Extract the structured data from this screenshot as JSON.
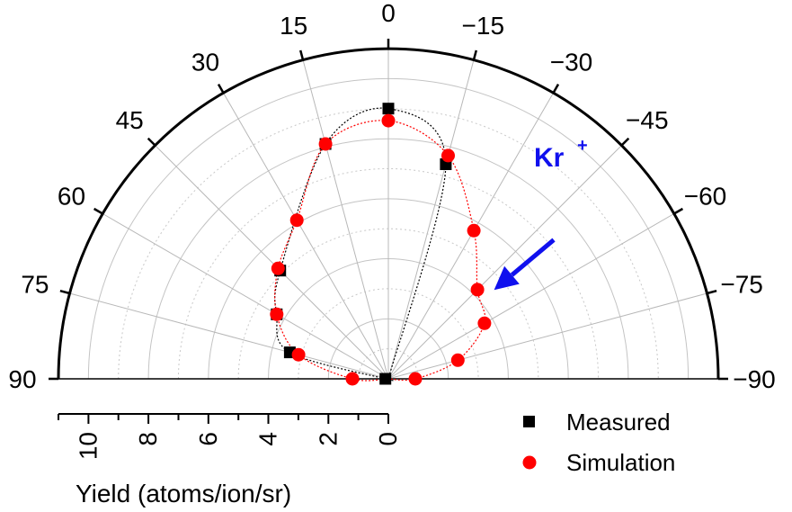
{
  "chart_data": {
    "type": "scatter",
    "coordinate_system": "polar-half",
    "angle_ticks": [
      "90",
      "75",
      "60",
      "45",
      "30",
      "15",
      "0",
      "−15",
      "−30",
      "−45",
      "−60",
      "−75",
      "−90"
    ],
    "angle_tick_values": [
      90,
      75,
      60,
      45,
      30,
      15,
      0,
      -15,
      -30,
      -45,
      -60,
      -75,
      -90
    ],
    "radial_axis": {
      "label": "Yield (atoms/ion/sr)",
      "ticks": [
        "10",
        "8",
        "6",
        "4",
        "2",
        "0"
      ],
      "tick_values": [
        10,
        8,
        6,
        4,
        2,
        0
      ],
      "range": [
        0,
        11
      ]
    },
    "annotation": {
      "text": "Kr",
      "superscript": "+",
      "arrow_from_angle": -50,
      "color": "#1010ee"
    },
    "series": [
      {
        "name": "Measured",
        "marker": "square",
        "color": "#000000",
        "points": [
          {
            "angle": 0,
            "r": 9.0
          },
          {
            "angle": 15,
            "r": 8.1
          },
          {
            "angle": -15,
            "r": 7.4
          },
          {
            "angle": 45,
            "r": 5.1
          },
          {
            "angle": 60,
            "r": 4.3
          },
          {
            "angle": 75,
            "r": 3.4
          },
          {
            "angle": 90,
            "r": 0.1
          }
        ]
      },
      {
        "name": "Simulation",
        "marker": "circle",
        "color": "#ff0000",
        "points": [
          {
            "angle": 0,
            "r": 8.6
          },
          {
            "angle": 15,
            "r": 8.1
          },
          {
            "angle": -15,
            "r": 7.7
          },
          {
            "angle": 30,
            "r": 6.1
          },
          {
            "angle": -30,
            "r": 5.7
          },
          {
            "angle": 45,
            "r": 5.2
          },
          {
            "angle": -45,
            "r": 4.2
          },
          {
            "angle": 60,
            "r": 4.3
          },
          {
            "angle": -60,
            "r": 3.7
          },
          {
            "angle": 75,
            "r": 3.1
          },
          {
            "angle": -75,
            "r": 2.4
          },
          {
            "angle": 90,
            "r": 1.2
          },
          {
            "angle": -90,
            "r": 0.9
          }
        ]
      }
    ],
    "legend": {
      "position": "bottom-right",
      "entries": [
        "Measured",
        "Simulation"
      ]
    }
  }
}
